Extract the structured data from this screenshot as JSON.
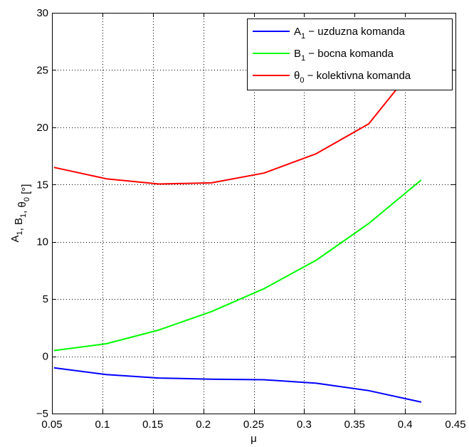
{
  "chart_data": {
    "type": "line",
    "title": "",
    "xlabel": "μ",
    "ylabel": {
      "parts": [
        {
          "text": "A",
          "sub": "1"
        },
        {
          "text": ", B",
          "sub": "1"
        },
        {
          "text": ", θ",
          "sub": "0"
        },
        {
          "text": " [°]",
          "sub": ""
        }
      ]
    },
    "xlim": [
      0.05,
      0.45
    ],
    "ylim": [
      -5,
      30
    ],
    "xticks": [
      0.05,
      0.1,
      0.15,
      0.2,
      0.25,
      0.3,
      0.35,
      0.4,
      0.45
    ],
    "xtick_labels": [
      "0.05",
      "0.1",
      "0.15",
      "0.2",
      "0.25",
      "0.3",
      "0.35",
      "0.4",
      "0.45"
    ],
    "yticks": [
      -5,
      0,
      5,
      10,
      15,
      20,
      25,
      30
    ],
    "ytick_labels": [
      "−5",
      "0",
      "5",
      "10",
      "15",
      "20",
      "25",
      "30"
    ],
    "grid": true,
    "legend_position": "top-right",
    "series": [
      {
        "name": "A",
        "name_sub": "1",
        "name_rest": " − uzduzna komanda",
        "color": "#0000ff",
        "x": [
          0.052,
          0.104,
          0.156,
          0.208,
          0.26,
          0.312,
          0.364,
          0.416
        ],
        "y": [
          -1.0,
          -1.6,
          -1.9,
          -2.0,
          -2.05,
          -2.35,
          -3.0,
          -4.0
        ]
      },
      {
        "name": "B",
        "name_sub": "1",
        "name_rest": " − bocna komanda",
        "color": "#00ff00",
        "x": [
          0.052,
          0.104,
          0.156,
          0.208,
          0.26,
          0.312,
          0.364,
          0.416
        ],
        "y": [
          0.5,
          1.1,
          2.3,
          3.9,
          5.9,
          8.4,
          11.6,
          15.4
        ]
      },
      {
        "name": "θ",
        "name_sub": "0",
        "name_rest": " − kolektivna komanda",
        "color": "#ff0000",
        "x": [
          0.052,
          0.104,
          0.156,
          0.208,
          0.26,
          0.312,
          0.364,
          0.416
        ],
        "y": [
          16.5,
          15.5,
          15.05,
          15.15,
          16.0,
          17.7,
          20.3,
          26.0
        ]
      }
    ]
  }
}
